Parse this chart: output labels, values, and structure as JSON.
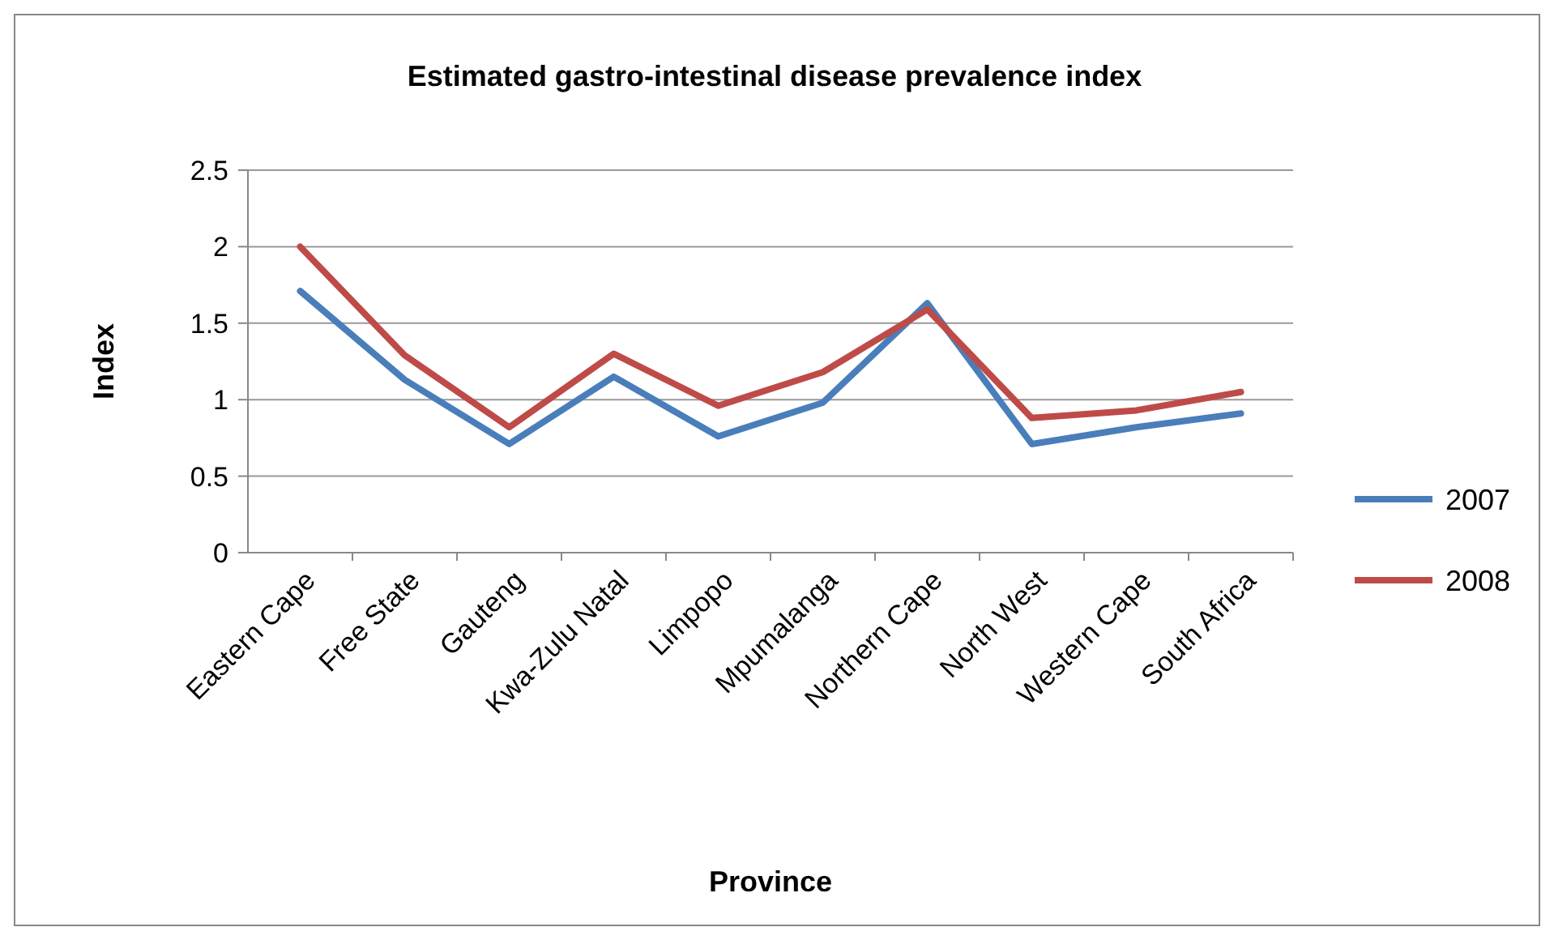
{
  "chart_data": {
    "type": "line",
    "title": "Estimated gastro-intestinal disease prevalence index",
    "xlabel": "Province",
    "ylabel": "Index",
    "categories": [
      "Eastern Cape",
      "Free State",
      "Gauteng",
      "Kwa-Zulu Natal",
      "Limpopo",
      "Mpumalanga",
      "Northern Cape",
      "North West",
      "Western Cape",
      "South Africa"
    ],
    "series": [
      {
        "name": "2007",
        "color": "#4a7ebb",
        "values": [
          1.71,
          1.13,
          0.71,
          1.15,
          0.76,
          0.98,
          1.63,
          0.71,
          0.82,
          0.91
        ]
      },
      {
        "name": "2008",
        "color": "#be4b48",
        "values": [
          2.0,
          1.29,
          0.82,
          1.3,
          0.96,
          1.18,
          1.59,
          0.88,
          0.93,
          1.05
        ]
      }
    ],
    "ylim": [
      0,
      2.5
    ],
    "yticks": [
      0,
      0.5,
      1,
      1.5,
      2,
      2.5
    ],
    "grid": "y",
    "legend": "right",
    "marker": "none",
    "line_style": "solid"
  }
}
